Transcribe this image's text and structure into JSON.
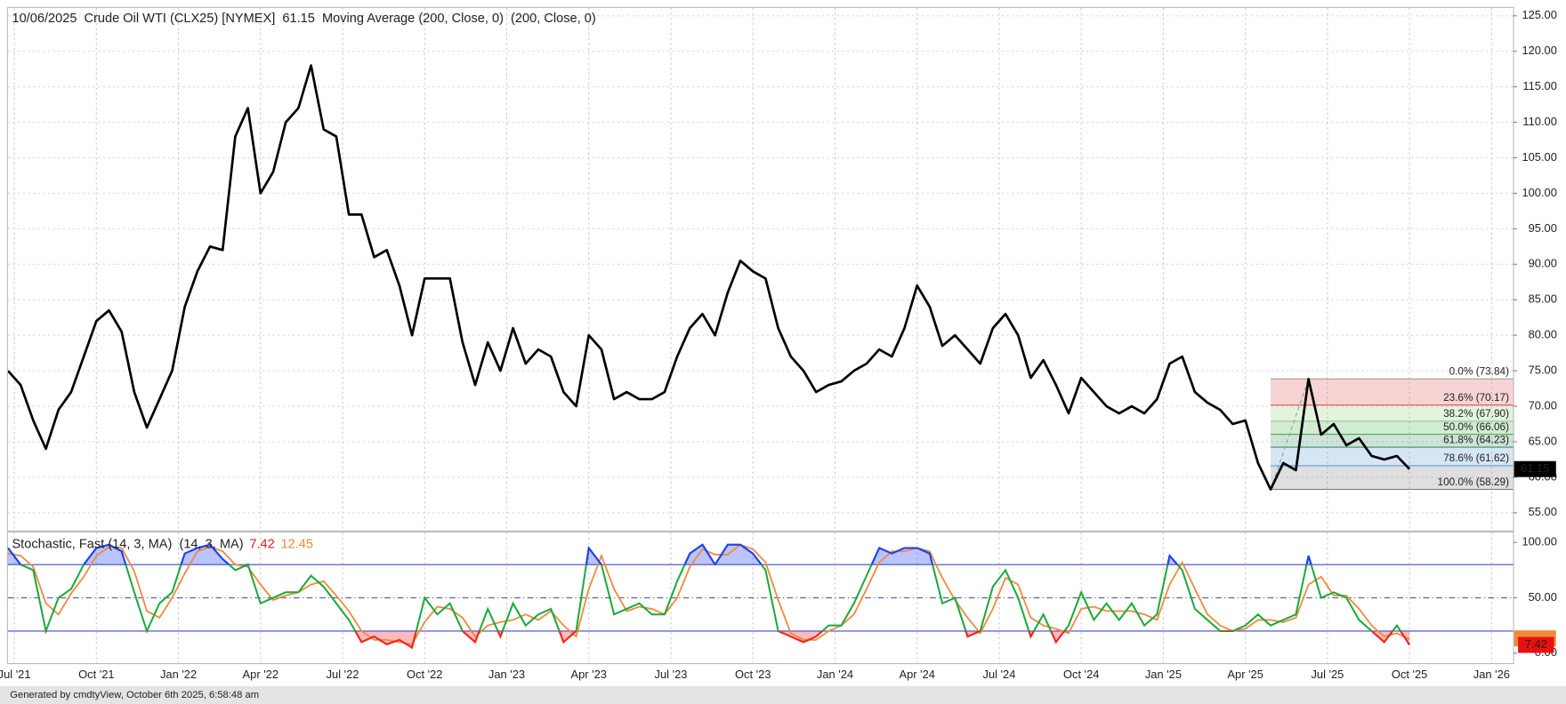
{
  "chart_data": [
    {
      "type": "line",
      "title": "10/06/2025  Crude Oil WTI (CLX25) [NYMEX]  61.15  Moving Average (200, Close, 0)  (200, Close, 0)",
      "color": "#000000",
      "values": [
        75,
        73,
        68,
        64,
        69.5,
        72,
        77,
        82,
        83.5,
        80.5,
        72,
        67,
        71,
        75,
        84,
        89,
        92.5,
        92,
        108,
        112,
        100,
        103,
        110,
        112,
        118,
        109,
        108,
        97,
        97,
        91,
        92,
        87,
        80,
        88,
        88,
        88,
        79,
        73,
        79,
        75,
        81,
        76,
        78,
        77,
        72,
        70,
        80,
        78,
        71,
        72,
        71,
        71,
        72,
        77,
        81,
        83,
        80,
        86,
        90.5,
        89,
        88,
        81,
        77,
        75,
        72,
        73,
        73.5,
        75,
        76,
        78,
        77,
        81,
        87,
        84,
        78.5,
        80,
        78,
        76,
        81,
        83,
        80,
        74,
        76.5,
        73,
        69,
        74,
        72,
        70,
        69,
        70,
        69,
        71,
        76,
        77,
        72,
        70.5,
        69.5,
        67.5,
        68,
        62,
        58.29,
        62,
        61,
        73.84,
        66,
        67.5,
        64.5,
        65.5,
        63,
        62.5,
        63,
        61.15
      ],
      "xlim": [
        0,
        119.2
      ],
      "xticks": [
        {
          "value": 0.5,
          "label": "Jul '21"
        },
        {
          "value": 7,
          "label": "Oct '21"
        },
        {
          "value": 13.5,
          "label": "Jan '22"
        },
        {
          "value": 20,
          "label": "Apr '22"
        },
        {
          "value": 26.5,
          "label": "Jul '22"
        },
        {
          "value": 33,
          "label": "Oct '22"
        },
        {
          "value": 39.5,
          "label": "Jan '23"
        },
        {
          "value": 46,
          "label": "Apr '23"
        },
        {
          "value": 52.5,
          "label": "Jul '23"
        },
        {
          "value": 59,
          "label": "Oct '23"
        },
        {
          "value": 65.5,
          "label": "Jan '24"
        },
        {
          "value": 72,
          "label": "Apr '24"
        },
        {
          "value": 78.5,
          "label": "Jul '24"
        },
        {
          "value": 85,
          "label": "Oct '24"
        },
        {
          "value": 91.5,
          "label": "Jan '25"
        },
        {
          "value": 98,
          "label": "Apr '25"
        },
        {
          "value": 104.5,
          "label": "Jul '25"
        },
        {
          "value": 111,
          "label": "Oct '25"
        },
        {
          "value": 117.5,
          "label": "Jan '26"
        }
      ],
      "ylim": [
        52.5,
        126.1
      ],
      "yticks": [
        {
          "value": 55,
          "label": "55.00"
        },
        {
          "value": 60,
          "label": "60.00"
        },
        {
          "value": 65,
          "label": "65.00"
        },
        {
          "value": 70,
          "label": "70.00"
        },
        {
          "value": 75,
          "label": "75.00"
        },
        {
          "value": 80,
          "label": "80.00"
        },
        {
          "value": 85,
          "label": "85.00"
        },
        {
          "value": 90,
          "label": "90.00"
        },
        {
          "value": 95,
          "label": "95.00"
        },
        {
          "value": 100,
          "label": "100.00"
        },
        {
          "value": 105,
          "label": "105.00"
        },
        {
          "value": 110,
          "label": "110.00"
        },
        {
          "value": 115,
          "label": "115.00"
        },
        {
          "value": 120,
          "label": "120.00"
        },
        {
          "value": 125,
          "label": "125.00"
        }
      ],
      "grid": true,
      "fib_levels": [
        {
          "label": "0.0% (73.84)",
          "value": 73.84,
          "color": "#9e9e9e"
        },
        {
          "label": "23.6% (70.17)",
          "value": 70.17,
          "color": "#e05050"
        },
        {
          "label": "38.2% (67.90)",
          "value": 67.9,
          "color": "#8fcf7f"
        },
        {
          "label": "50.0% (66.06)",
          "value": 66.06,
          "color": "#4caf50"
        },
        {
          "label": "61.8% (64.23)",
          "value": 64.23,
          "color": "#3a8f6a"
        },
        {
          "label": "78.6% (61.62)",
          "value": 61.62,
          "color": "#5b9bd5"
        },
        {
          "label": "100.0% (58.29)",
          "value": 58.29,
          "color": "#808080"
        }
      ]
    },
    {
      "type": "stochastic",
      "title": "Stochastic, Fast (14, 3, MA)  (14, 3, MA)",
      "series": [
        {
          "color": "#1aaa3a",
          "values": [
            95,
            80,
            75,
            20,
            50,
            58,
            80,
            95,
            98,
            92,
            55,
            20,
            45,
            55,
            90,
            95,
            98,
            85,
            75,
            80,
            45,
            50,
            55,
            55,
            70,
            60,
            45,
            30,
            10,
            15,
            8,
            12,
            5,
            50,
            35,
            45,
            20,
            10,
            40,
            15,
            45,
            25,
            35,
            40,
            10,
            20,
            95,
            80,
            35,
            40,
            45,
            35,
            35,
            65,
            90,
            98,
            80,
            98,
            98,
            90,
            75,
            20,
            15,
            10,
            15,
            25,
            25,
            45,
            70,
            95,
            90,
            95,
            95,
            90,
            45,
            50,
            15,
            20,
            60,
            75,
            50,
            15,
            35,
            10,
            25,
            55,
            30,
            45,
            30,
            45,
            25,
            35,
            88,
            75,
            40,
            30,
            20,
            20,
            25,
            35,
            25,
            30,
            35,
            88,
            50,
            55,
            50,
            30,
            20,
            10,
            25,
            7.42
          ]
        },
        {
          "color": "#f08a3c",
          "values": [
            90,
            88,
            78,
            45,
            35,
            54,
            69,
            88,
            96,
            95,
            74,
            38,
            32,
            50,
            72,
            92,
            96,
            92,
            80,
            78,
            62,
            48,
            52,
            55,
            62,
            65,
            52,
            38,
            20,
            12,
            12,
            10,
            8,
            28,
            42,
            40,
            32,
            15,
            25,
            28,
            30,
            35,
            30,
            38,
            25,
            15,
            58,
            88,
            58,
            38,
            42,
            40,
            35,
            50,
            78,
            94,
            89,
            89,
            98,
            94,
            82,
            48,
            18,
            12,
            12,
            20,
            25,
            35,
            58,
            82,
            92,
            92,
            95,
            92,
            68,
            48,
            32,
            18,
            40,
            68,
            62,
            32,
            25,
            22,
            18,
            40,
            42,
            38,
            38,
            38,
            35,
            30,
            62,
            82,
            58,
            35,
            25,
            20,
            22,
            30,
            30,
            28,
            32,
            62,
            69,
            52,
            52,
            40,
            25,
            15,
            18,
            12.45
          ]
        }
      ],
      "ylim": [
        -9,
        109
      ],
      "yticks": [
        {
          "value": 100,
          "label": "100.00"
        },
        {
          "value": 50,
          "label": "50.00"
        },
        {
          "value": 0,
          "label": "0.00"
        }
      ],
      "upper": 80,
      "lower": 20,
      "mid": 50,
      "upper_color": "#1f3cff",
      "lower_color": "#ff1f1f"
    }
  ],
  "footer": "Generated by cmdtyView, October 6th 2025, 6:58:48 am"
}
